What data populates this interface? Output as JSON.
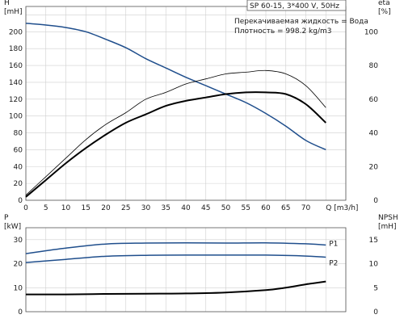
{
  "chart_data": [
    {
      "type": "line",
      "title": "SP 60-15, 3*400 V, 50Hz",
      "info": [
        "Перекачиваемая жидкость = Вода",
        "Плотность = 998.2 kg/m3"
      ],
      "xlabel": "Q [m3/h]",
      "xlim": [
        0,
        80
      ],
      "x_ticks": [
        "0",
        "5",
        "10",
        "15",
        "20",
        "25",
        "30",
        "35",
        "40",
        "45",
        "50",
        "55",
        "60",
        "65",
        "70",
        "Q [m3/h]"
      ],
      "left_axis": {
        "label_lines": [
          "H",
          "[mH]"
        ],
        "ylim": [
          0,
          230
        ],
        "ticks": [
          0,
          20,
          40,
          60,
          80,
          100,
          120,
          140,
          160,
          180,
          200
        ]
      },
      "right_axis": {
        "label_lines": [
          "eta",
          "[%]"
        ],
        "ylim": [
          0,
          115
        ],
        "ticks": [
          0,
          20,
          40,
          60,
          80,
          100
        ]
      },
      "grid": true,
      "series": [
        {
          "name": "H",
          "axis": "left",
          "color": "#1f4e8c",
          "points": [
            [
              0,
              210
            ],
            [
              5,
              208
            ],
            [
              10,
              205
            ],
            [
              15,
              200
            ],
            [
              20,
              191
            ],
            [
              25,
              181
            ],
            [
              30,
              168
            ],
            [
              35,
              157
            ],
            [
              40,
              146
            ],
            [
              45,
              136
            ],
            [
              50,
              126
            ],
            [
              55,
              116
            ],
            [
              60,
              103
            ],
            [
              65,
              88
            ],
            [
              70,
              71
            ],
            [
              75,
              60
            ]
          ]
        },
        {
          "name": "eta",
          "axis": "right",
          "color": "#000000",
          "points": [
            [
              0,
              2
            ],
            [
              5,
              12
            ],
            [
              10,
              22
            ],
            [
              15,
              31
            ],
            [
              20,
              39
            ],
            [
              25,
              46
            ],
            [
              30,
              51
            ],
            [
              35,
              56
            ],
            [
              40,
              59
            ],
            [
              45,
              61
            ],
            [
              50,
              63
            ],
            [
              55,
              64
            ],
            [
              60,
              64
            ],
            [
              65,
              63
            ],
            [
              70,
              57
            ],
            [
              75,
              46
            ]
          ]
        },
        {
          "name": "",
          "axis": "right",
          "color": "#000000",
          "thin": true,
          "points": [
            [
              0,
              3
            ],
            [
              5,
              14
            ],
            [
              10,
              25
            ],
            [
              15,
              36
            ],
            [
              20,
              45
            ],
            [
              25,
              52
            ],
            [
              30,
              60
            ],
            [
              35,
              64
            ],
            [
              40,
              69
            ],
            [
              45,
              72
            ],
            [
              50,
              75
            ],
            [
              55,
              76
            ],
            [
              60,
              77
            ],
            [
              65,
              75
            ],
            [
              70,
              68
            ],
            [
              75,
              55
            ]
          ]
        }
      ]
    },
    {
      "type": "line",
      "xlim": [
        0,
        80
      ],
      "x_ticks": [],
      "left_axis": {
        "label_lines": [
          "P",
          "[kW]"
        ],
        "ylim": [
          0,
          35
        ],
        "ticks": [
          0,
          10,
          20,
          30
        ]
      },
      "right_axis": {
        "label_lines": [
          "NPSH",
          "[mH]"
        ],
        "ylim": [
          0,
          17.5
        ],
        "ticks": [
          0,
          5,
          10,
          15
        ]
      },
      "grid": true,
      "series": [
        {
          "name": "P1",
          "axis": "left",
          "color": "#1f4e8c",
          "points": [
            [
              0,
              24.2
            ],
            [
              10,
              26.5
            ],
            [
              20,
              28.2
            ],
            [
              30,
              28.6
            ],
            [
              40,
              28.7
            ],
            [
              50,
              28.6
            ],
            [
              60,
              28.7
            ],
            [
              70,
              28.3
            ],
            [
              75,
              27.8
            ]
          ]
        },
        {
          "name": "P2",
          "axis": "left",
          "color": "#1f4e8c",
          "points": [
            [
              0,
              20.5
            ],
            [
              10,
              21.8
            ],
            [
              20,
              23.1
            ],
            [
              30,
              23.5
            ],
            [
              40,
              23.6
            ],
            [
              50,
              23.6
            ],
            [
              60,
              23.6
            ],
            [
              70,
              23.2
            ],
            [
              75,
              22.7
            ]
          ]
        },
        {
          "name": "NPSH",
          "axis": "right",
          "color": "#000000",
          "points": [
            [
              0,
              3.6
            ],
            [
              10,
              3.6
            ],
            [
              20,
              3.7
            ],
            [
              30,
              3.75
            ],
            [
              40,
              3.8
            ],
            [
              50,
              4.0
            ],
            [
              60,
              4.5
            ],
            [
              65,
              5.0
            ],
            [
              70,
              5.7
            ],
            [
              75,
              6.3
            ]
          ]
        }
      ]
    }
  ]
}
